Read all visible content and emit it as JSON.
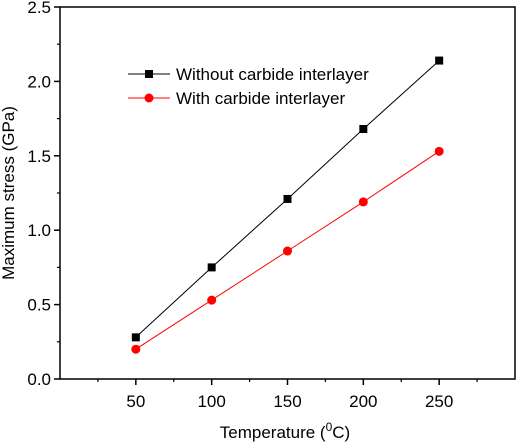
{
  "chart_data": {
    "type": "line",
    "x": [
      50,
      100,
      150,
      200,
      250
    ],
    "series": [
      {
        "name": "Without carbide interlayer",
        "values": [
          0.28,
          0.75,
          1.21,
          1.68,
          2.14
        ],
        "color": "#000000",
        "marker": "square"
      },
      {
        "name": "With carbide interlayer",
        "values": [
          0.2,
          0.53,
          0.86,
          1.19,
          1.53
        ],
        "color": "#ff0000",
        "marker": "circle"
      }
    ],
    "xlabel": "Temperature (",
    "xlabel_sup": "0",
    "xlabel_unit": "C)",
    "ylabel": "Maximum stress (GPa)",
    "xlim": [
      0,
      300
    ],
    "ylim": [
      0.0,
      2.5
    ],
    "xticks": [
      "50",
      "100",
      "150",
      "200",
      "250"
    ],
    "yticks": [
      "0.0",
      "0.5",
      "1.0",
      "1.5",
      "2.0",
      "2.5"
    ],
    "legend_position": "top-left",
    "grid": false
  }
}
